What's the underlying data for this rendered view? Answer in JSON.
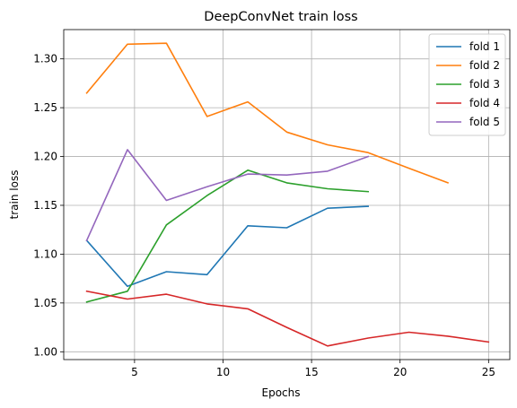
{
  "chart_data": {
    "type": "line",
    "title": "DeepConvNet train loss",
    "xlabel": "Epochs",
    "ylabel": "train loss",
    "xlim": [
      1.0,
      26.2
    ],
    "ylim": [
      0.992,
      1.33
    ],
    "xticks": [
      5,
      10,
      15,
      20,
      25
    ],
    "xtick_labels": [
      "5",
      "10",
      "15",
      "20",
      "25"
    ],
    "yticks": [
      1.0,
      1.05,
      1.1,
      1.15,
      1.2,
      1.25,
      1.3
    ],
    "ytick_labels": [
      "1.00",
      "1.05",
      "1.10",
      "1.15",
      "1.20",
      "1.25",
      "1.30"
    ],
    "grid": true,
    "legend_position": "top-right",
    "series": [
      {
        "name": "fold 1",
        "color": "#1f77b4",
        "x": [
          2.3,
          4.6,
          6.8,
          9.1,
          11.4,
          13.6,
          15.9,
          18.2
        ],
        "y": [
          1.114,
          1.067,
          1.082,
          1.079,
          1.129,
          1.127,
          1.147,
          1.149
        ]
      },
      {
        "name": "fold 2",
        "color": "#ff7f0e",
        "x": [
          2.3,
          4.6,
          6.8,
          9.1,
          11.4,
          13.6,
          15.9,
          18.2,
          20.5,
          22.7
        ],
        "y": [
          1.265,
          1.315,
          1.316,
          1.241,
          1.256,
          1.225,
          1.212,
          1.204,
          1.188,
          1.173
        ]
      },
      {
        "name": "fold 3",
        "color": "#2ca02c",
        "x": [
          2.3,
          4.6,
          6.8,
          9.1,
          11.4,
          13.6,
          15.9,
          18.2
        ],
        "y": [
          1.051,
          1.062,
          1.13,
          1.16,
          1.186,
          1.173,
          1.167,
          1.164
        ]
      },
      {
        "name": "fold 4",
        "color": "#d62728",
        "x": [
          2.3,
          4.6,
          6.8,
          9.1,
          11.4,
          13.6,
          15.9,
          18.2,
          20.5,
          22.7,
          25.0
        ],
        "y": [
          1.062,
          1.054,
          1.059,
          1.049,
          1.044,
          1.025,
          1.006,
          1.014,
          1.02,
          1.016,
          1.01
        ]
      },
      {
        "name": "fold 5",
        "color": "#9467bd",
        "x": [
          2.3,
          4.6,
          6.8,
          9.1,
          11.4,
          13.6,
          15.9,
          18.2
        ],
        "y": [
          1.114,
          1.207,
          1.155,
          1.169,
          1.182,
          1.181,
          1.185,
          1.2
        ]
      }
    ]
  }
}
